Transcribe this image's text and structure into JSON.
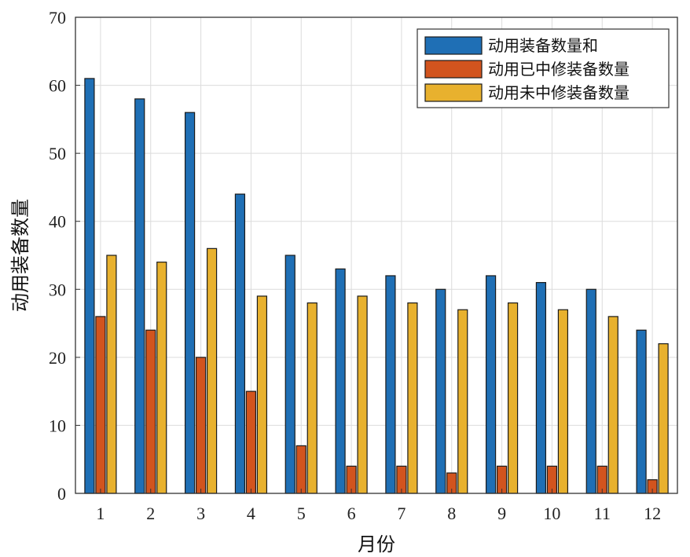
{
  "chart_data": {
    "type": "bar",
    "categories": [
      "1",
      "2",
      "3",
      "4",
      "5",
      "6",
      "7",
      "8",
      "9",
      "10",
      "11",
      "12"
    ],
    "series": [
      {
        "name": "动用装备数量和",
        "color": "#1f6fb5",
        "values": [
          61,
          58,
          56,
          44,
          35,
          33,
          32,
          30,
          32,
          31,
          30,
          24
        ]
      },
      {
        "name": "动用已中修装备数量",
        "color": "#d2541e",
        "values": [
          26,
          24,
          20,
          15,
          7,
          4,
          4,
          3,
          4,
          4,
          4,
          2
        ]
      },
      {
        "name": "动用未中修装备数量",
        "color": "#e8b12e",
        "values": [
          35,
          34,
          36,
          29,
          28,
          29,
          28,
          27,
          28,
          27,
          26,
          22
        ]
      }
    ],
    "xlabel": "月份",
    "ylabel": "动用装备数量",
    "ylim": [
      0,
      70
    ],
    "yticks": [
      0,
      10,
      20,
      30,
      40,
      50,
      60,
      70
    ],
    "grid": true,
    "legend_position": "top-right"
  }
}
